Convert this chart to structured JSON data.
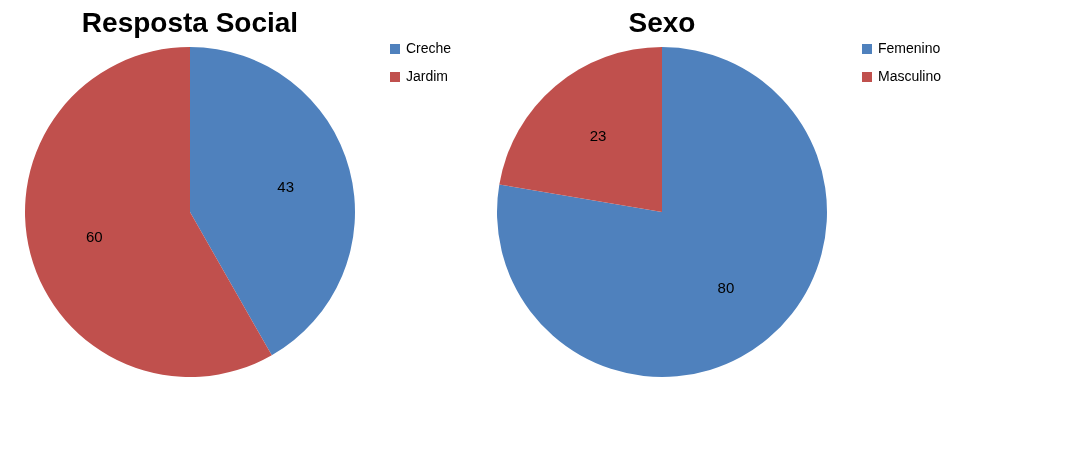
{
  "chart_data": [
    {
      "type": "pie",
      "title": "Resposta Social",
      "categories": [
        "Creche",
        "Jardim"
      ],
      "values": [
        43,
        60
      ],
      "colors": [
        "#4f81bd",
        "#c0504d"
      ],
      "data_labels": true,
      "legend": "right"
    },
    {
      "type": "pie",
      "title": "Sexo",
      "categories": [
        "Femenino",
        "Masculino"
      ],
      "values": [
        80,
        23
      ],
      "colors": [
        "#4f81bd",
        "#c0504d"
      ],
      "data_labels": true,
      "legend": "right"
    }
  ]
}
